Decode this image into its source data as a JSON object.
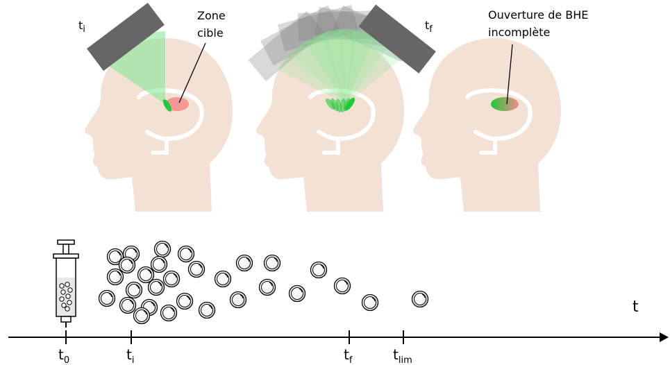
{
  "colors": {
    "head": "#f4e1d6",
    "transducer": "#666666",
    "beam": "#7ee68f",
    "target": "#f48a8a",
    "focus": "#22c93a",
    "axis": "#000000"
  },
  "icons": {
    "syringe": "syringe-icon",
    "bubble": "microbubble-icon",
    "transducer": "ultrasound-transducer-icon"
  },
  "panel1": {
    "time_main": "t",
    "time_sub": "i",
    "target_label_line1": "Zone",
    "target_label_line2": "cible"
  },
  "panel2": {
    "time_main": "t",
    "time_sub": "f"
  },
  "panel3": {
    "label_line1": "Ouverture de BHE",
    "label_line2": "incomplète"
  },
  "timeline": {
    "axis_label": "t",
    "ticks": [
      {
        "main": "t",
        "sub": "0"
      },
      {
        "main": "t",
        "sub": "i"
      },
      {
        "main": "t",
        "sub": "f"
      },
      {
        "main": "t",
        "sub": "lim"
      }
    ]
  }
}
